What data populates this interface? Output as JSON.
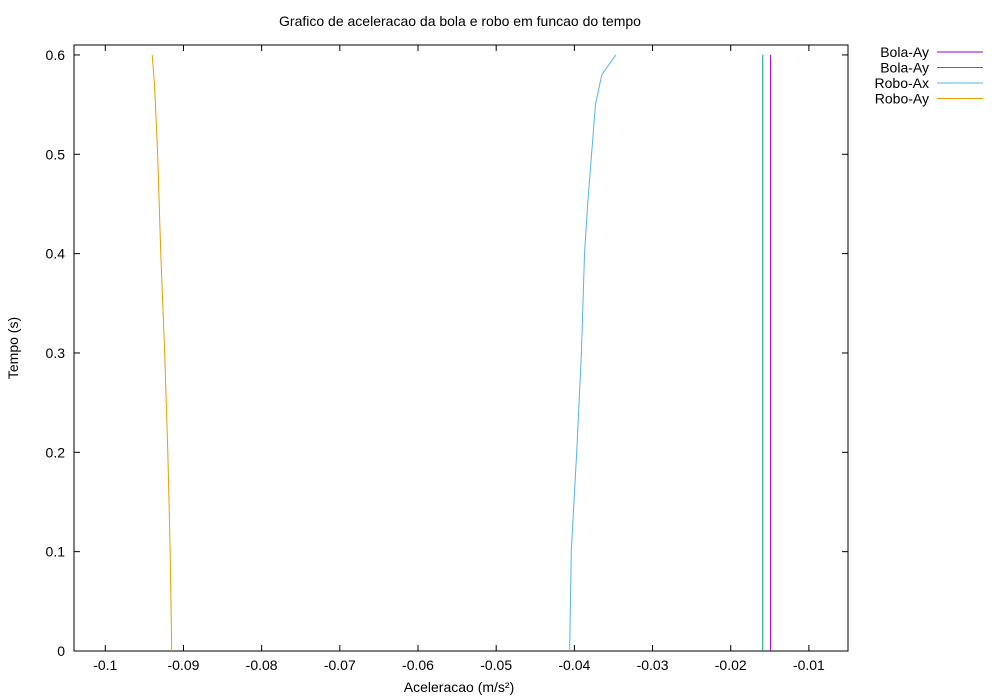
{
  "chart_data": {
    "type": "line",
    "title": "Grafico de aceleracao da bola e robo em funcao do tempo",
    "xlabel": "Aceleracao (m/s²)",
    "ylabel": "Tempo (s)",
    "xlim": [
      -0.104,
      -0.005
    ],
    "ylim": [
      0,
      0.61
    ],
    "xticks": [
      -0.1,
      -0.09,
      -0.08,
      -0.07,
      -0.06,
      -0.05,
      -0.04,
      -0.03,
      -0.02,
      -0.01
    ],
    "xtick_labels": [
      "-0.1",
      "-0.09",
      "-0.08",
      "-0.07",
      "-0.06",
      "-0.05",
      "-0.04",
      "-0.03",
      "-0.02",
      "-0.01"
    ],
    "yticks": [
      0,
      0.1,
      0.2,
      0.3,
      0.4,
      0.5,
      0.6
    ],
    "ytick_labels": [
      "0",
      "0.1",
      "0.2",
      "0.3",
      "0.4",
      "0.5",
      "0.6"
    ],
    "grid": false,
    "legend_position": "outside-top-right",
    "series": [
      {
        "name": "Bola-Ay",
        "color": "#9400d3",
        "x": [
          -0.0149,
          -0.0149
        ],
        "y": [
          0,
          0.6
        ]
      },
      {
        "name": "Bola-Ay",
        "color": "#009e73",
        "x": [
          -0.0159,
          -0.0159
        ],
        "y": [
          0,
          0.6
        ]
      },
      {
        "name": "Robo-Ax",
        "color": "#56b4e9",
        "x": [
          -0.0406,
          -0.0404,
          -0.0397,
          -0.0391,
          -0.0387,
          -0.0383,
          -0.0378,
          -0.0373,
          -0.0365,
          -0.0347
        ],
        "y": [
          0,
          0.1,
          0.2,
          0.3,
          0.4,
          0.45,
          0.5,
          0.55,
          0.58,
          0.6
        ]
      },
      {
        "name": "Robo-Ay",
        "color": "#e69f00",
        "x": [
          -0.0915,
          -0.0917,
          -0.092,
          -0.0924,
          -0.0929,
          -0.0933,
          -0.0937,
          -0.094
        ],
        "y": [
          0,
          0.1,
          0.2,
          0.3,
          0.4,
          0.5,
          0.57,
          0.6
        ]
      }
    ]
  }
}
